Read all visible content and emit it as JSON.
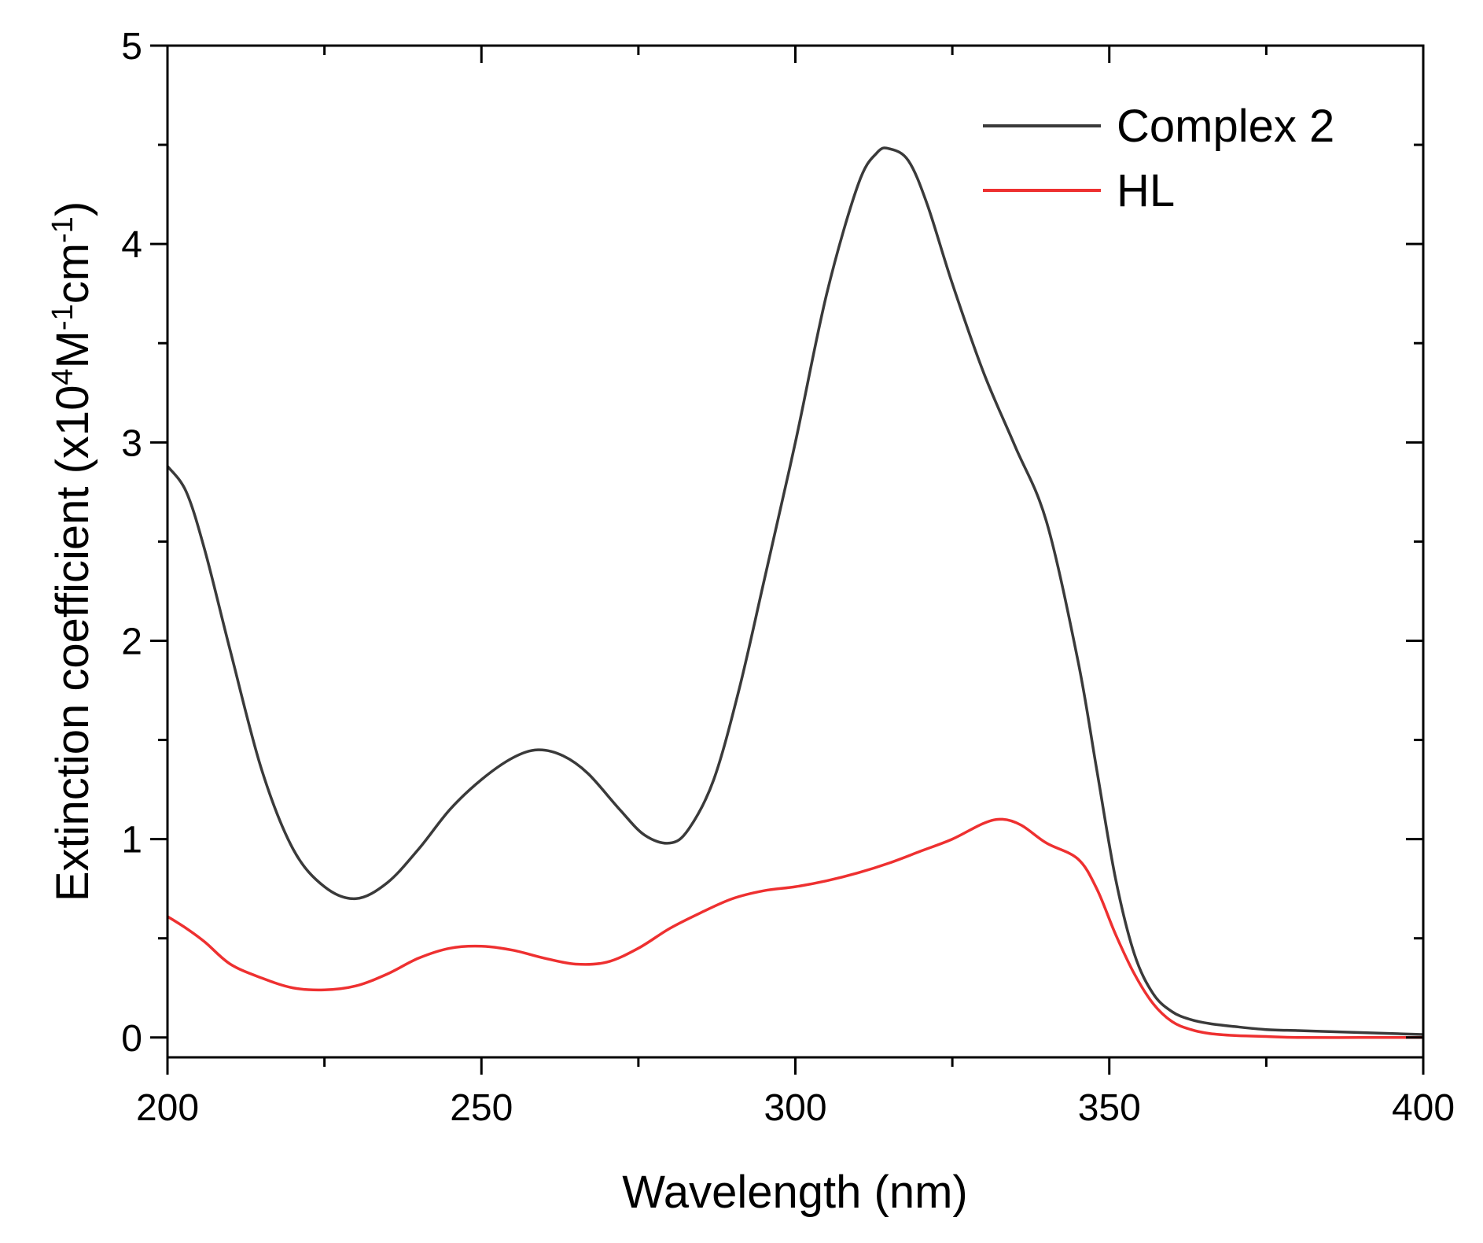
{
  "chart_data": {
    "type": "line",
    "title": "",
    "xlabel": "Wavelength (nm)",
    "ylabel_parts": {
      "prefix": "Extinction coefficient (x10",
      "sup1": "4",
      "mid1": "M",
      "sup2": "-1",
      "mid2": "cm",
      "sup3": "-1",
      "suffix": ")"
    },
    "xlim": [
      200,
      400
    ],
    "ylim": [
      -0.1,
      5
    ],
    "x_ticks": [
      200,
      250,
      300,
      350,
      400
    ],
    "x_tick_labels": [
      "200",
      "250",
      "300",
      "350",
      "400"
    ],
    "y_ticks": [
      0,
      1,
      2,
      3,
      4,
      5
    ],
    "y_tick_labels": [
      "0",
      "1",
      "2",
      "3",
      "4",
      "5"
    ],
    "grid": false,
    "legend_position": "top-right",
    "series": [
      {
        "name": "Complex 2",
        "color": "#3a3a3a",
        "x": [
          200,
          203,
          206,
          210,
          215,
          220,
          225,
          230,
          235,
          240,
          245,
          250,
          255,
          259,
          263,
          267,
          272,
          276,
          280,
          283,
          287,
          291,
          295,
          300,
          305,
          310,
          313,
          315,
          318,
          321,
          325,
          330,
          335,
          340,
          345,
          348,
          351,
          354,
          357,
          360,
          363,
          366,
          370,
          375,
          380,
          385,
          390,
          395,
          400
        ],
        "y": [
          2.88,
          2.75,
          2.45,
          1.95,
          1.35,
          0.95,
          0.76,
          0.7,
          0.78,
          0.95,
          1.15,
          1.3,
          1.41,
          1.45,
          1.42,
          1.33,
          1.15,
          1.02,
          0.98,
          1.05,
          1.3,
          1.75,
          2.3,
          3.0,
          3.75,
          4.3,
          4.46,
          4.48,
          4.42,
          4.2,
          3.8,
          3.35,
          2.98,
          2.6,
          1.9,
          1.35,
          0.8,
          0.42,
          0.22,
          0.13,
          0.09,
          0.07,
          0.055,
          0.04,
          0.035,
          0.03,
          0.025,
          0.02,
          0.015
        ]
      },
      {
        "name": "HL",
        "color": "#ee3030",
        "x": [
          200,
          203,
          206,
          210,
          215,
          220,
          225,
          230,
          235,
          240,
          245,
          250,
          255,
          260,
          265,
          270,
          275,
          280,
          285,
          290,
          295,
          300,
          305,
          310,
          315,
          320,
          325,
          330,
          333,
          336,
          340,
          345,
          348,
          351,
          354,
          357,
          360,
          363,
          366,
          370,
          375,
          380,
          390,
          400
        ],
        "y": [
          0.61,
          0.55,
          0.48,
          0.37,
          0.3,
          0.25,
          0.24,
          0.26,
          0.32,
          0.4,
          0.45,
          0.46,
          0.44,
          0.4,
          0.37,
          0.38,
          0.45,
          0.55,
          0.63,
          0.7,
          0.74,
          0.76,
          0.79,
          0.83,
          0.88,
          0.94,
          1.0,
          1.08,
          1.1,
          1.07,
          0.98,
          0.9,
          0.75,
          0.52,
          0.32,
          0.17,
          0.08,
          0.04,
          0.02,
          0.01,
          0.005,
          0.0,
          0.0,
          0.0
        ]
      }
    ]
  }
}
